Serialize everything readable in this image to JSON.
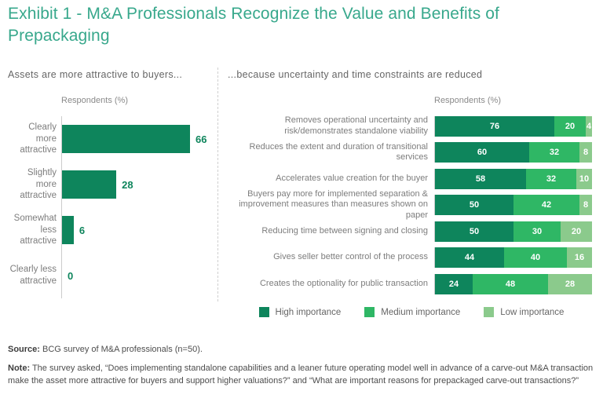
{
  "title": "Exhibit 1 - M&A Professionals Recognize the Value and Benefits of Prepackaging",
  "left_panel": {
    "heading": "Assets are more attractive to buyers...",
    "axis_label": "Respondents (%)"
  },
  "right_panel": {
    "heading": "...because uncertainty and time constraints are reduced",
    "axis_label": "Respondents (%)"
  },
  "colors": {
    "title_teal": "#38A88C",
    "high_importance": "#0E855C",
    "medium_importance": "#2FB765",
    "low_importance": "#8BCA8C",
    "axis_gray": "#cccccc"
  },
  "chart_data": [
    {
      "type": "bar",
      "orientation": "horizontal",
      "title": "Assets are more attractive to buyers...",
      "xlabel": "Respondents (%)",
      "xlim": [
        0,
        100
      ],
      "grid": false,
      "categories": [
        "Clearly more attractive",
        "Slightly more attractive",
        "Somewhat less attractive",
        "Clearly less attractive"
      ],
      "values": [
        66,
        28,
        6,
        0
      ],
      "bar_color": "#0E855C",
      "value_label_color": "#0E855C"
    },
    {
      "type": "bar",
      "orientation": "horizontal",
      "stacked": true,
      "title": "...because uncertainty and time constraints are reduced",
      "xlabel": "Respondents (%)",
      "xlim": [
        0,
        100
      ],
      "grid": false,
      "legend_position": "bottom",
      "categories": [
        "Removes operational uncertainty and risk/demonstrates standalone viability",
        "Reduces the extent and duration of transitional services",
        "Accelerates value creation for the buyer",
        "Buyers pay more for implemented separation & improvement measures than measures shown on paper",
        "Reducing time between signing and closing",
        "Gives seller better control of the process",
        "Creates the optionality for public transaction"
      ],
      "series": [
        {
          "name": "High importance",
          "color": "#0E855C",
          "values": [
            76,
            60,
            58,
            50,
            50,
            44,
            24
          ]
        },
        {
          "name": "Medium importance",
          "color": "#2FB765",
          "values": [
            20,
            32,
            32,
            42,
            30,
            40,
            48
          ]
        },
        {
          "name": "Low importance",
          "color": "#8BCA8C",
          "values": [
            4,
            8,
            10,
            8,
            20,
            16,
            28
          ]
        }
      ]
    }
  ],
  "footer": {
    "source_label": "Source:",
    "source_text": " BCG survey of M&A professionals (n=50).",
    "note_label": "Note:",
    "note_text": " The survey asked, “Does implementing standalone capabilities and a leaner future operating model well in advance of a carve-out M&A transaction make the asset more attractive for buyers and support higher valuations?” and “What are important reasons for prepackaged carve-out transactions?”"
  }
}
